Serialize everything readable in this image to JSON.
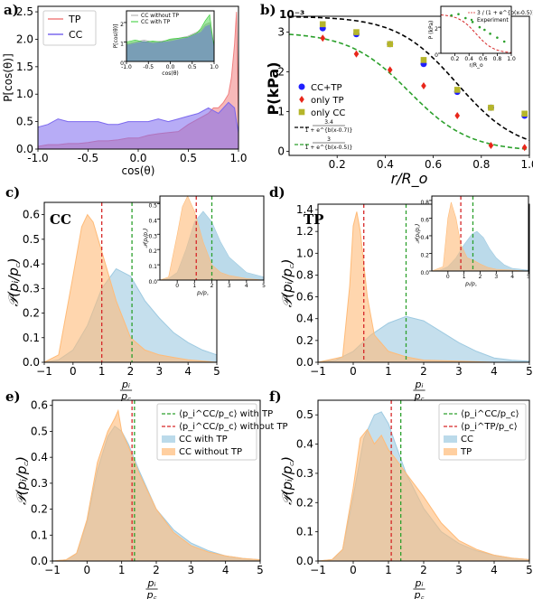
{
  "chart_data": [
    {
      "panel_label": "a)",
      "type": "area",
      "xlabel": "cos(θ)",
      "ylabel": "P[cos(θ)]",
      "xlim": [
        -1.0,
        1.0
      ],
      "ylim": [
        0,
        2.6
      ],
      "xticks": [
        "-1.0",
        "-0.5",
        "0.0",
        "0.5",
        "1.0"
      ],
      "yticks": [
        "0.0",
        "0.5",
        "1.0",
        "1.5",
        "2.0",
        "2.5"
      ],
      "legend_position": "top-left",
      "series": [
        {
          "name": "TP",
          "color": "#f08080",
          "x": [
            -1.0,
            -0.9,
            -0.8,
            -0.7,
            -0.6,
            -0.5,
            -0.4,
            -0.3,
            -0.2,
            -0.1,
            0.0,
            0.1,
            0.2,
            0.3,
            0.4,
            0.5,
            0.6,
            0.7,
            0.75,
            0.8,
            0.85,
            0.9,
            0.93,
            0.96,
            0.98,
            1.0
          ],
          "values": [
            0.05,
            0.08,
            0.08,
            0.1,
            0.1,
            0.12,
            0.15,
            0.15,
            0.17,
            0.2,
            0.2,
            0.25,
            0.28,
            0.3,
            0.32,
            0.45,
            0.55,
            0.65,
            0.75,
            0.75,
            0.85,
            1.0,
            1.3,
            1.9,
            2.5,
            0.5
          ]
        },
        {
          "name": "CC",
          "color": "#7b68ee",
          "x": [
            -1.0,
            -0.9,
            -0.8,
            -0.7,
            -0.6,
            -0.5,
            -0.4,
            -0.3,
            -0.2,
            -0.1,
            0.0,
            0.1,
            0.2,
            0.3,
            0.4,
            0.5,
            0.6,
            0.7,
            0.75,
            0.8,
            0.85,
            0.9,
            0.93,
            0.96,
            0.98,
            1.0
          ],
          "values": [
            0.4,
            0.45,
            0.55,
            0.5,
            0.5,
            0.5,
            0.5,
            0.45,
            0.45,
            0.5,
            0.5,
            0.5,
            0.55,
            0.5,
            0.55,
            0.6,
            0.65,
            0.75,
            0.7,
            0.65,
            0.75,
            0.85,
            0.8,
            0.75,
            0.5,
            0.3
          ]
        }
      ],
      "inset": {
        "ylabel": "P[cos(θ)]",
        "xlabel": "cos(θ)",
        "xticks": [
          "-1.0",
          "-0.5",
          "0.0",
          "0.5",
          "1.0"
        ],
        "yticks": [
          "0",
          "1",
          "2"
        ],
        "ylim": [
          0,
          2.6
        ],
        "series": [
          {
            "name": "CC without TP",
            "color": "#a9a9a9",
            "x": [
              -1.0,
              -0.8,
              -0.6,
              -0.4,
              -0.2,
              0.0,
              0.2,
              0.4,
              0.6,
              0.7,
              0.8,
              0.9,
              1.0
            ],
            "values": [
              0.9,
              1.0,
              1.1,
              1.0,
              1.05,
              1.1,
              1.2,
              1.3,
              1.5,
              1.6,
              1.9,
              2.0,
              0.8
            ]
          },
          {
            "name": "CC with TP",
            "color": "#32cd32",
            "x": [
              -1.0,
              -0.8,
              -0.6,
              -0.4,
              -0.2,
              0.0,
              0.2,
              0.4,
              0.6,
              0.7,
              0.8,
              0.9,
              1.0
            ],
            "values": [
              1.0,
              1.1,
              1.0,
              1.05,
              1.0,
              1.15,
              1.2,
              1.25,
              1.45,
              1.7,
              2.1,
              2.4,
              0.7
            ]
          }
        ]
      }
    },
    {
      "panel_label": "b)",
      "type": "scatter",
      "ylabel": "P(kPa)",
      "xlabel": "r/R_o",
      "y_multiplier": "10⁻³",
      "xlim": [
        0.0,
        1.0
      ],
      "ylim": [
        -0.1,
        3.4
      ],
      "xticks": [
        "0.2",
        "0.4",
        "0.6",
        "0.8",
        "1.0"
      ],
      "yticks": [
        "0",
        "1",
        "2",
        "3"
      ],
      "legend_position": "center-left",
      "series": [
        {
          "name": "CC+TP",
          "marker": "circle",
          "color": "#1f1fff",
          "x": [
            0.14,
            0.28,
            0.42,
            0.56,
            0.7,
            0.84,
            0.98
          ],
          "values": [
            3.1,
            2.95,
            2.7,
            2.2,
            1.5,
            1.1,
            0.9
          ]
        },
        {
          "name": "only TP",
          "marker": "diamond",
          "color": "#e8261a",
          "x": [
            0.14,
            0.28,
            0.42,
            0.56,
            0.7,
            0.84,
            0.98
          ],
          "values": [
            2.85,
            2.45,
            2.05,
            1.65,
            0.9,
            0.15,
            0.1
          ]
        },
        {
          "name": "only CC",
          "marker": "square",
          "color": "#b5b52a",
          "x": [
            0.14,
            0.28,
            0.42,
            0.56,
            0.7,
            0.84,
            0.98
          ],
          "values": [
            3.2,
            3.0,
            2.7,
            2.3,
            1.55,
            1.1,
            0.95
          ]
        }
      ],
      "fits": [
        {
          "label_num": "3.4",
          "label_den": "1 + e^{b(x-0.7)}",
          "color": "#000000",
          "style": "dashed",
          "A": 3.4,
          "b": 8,
          "x0": 0.7
        },
        {
          "label_num": "3",
          "label_den": "1 + e^{b(x-0.5)}",
          "color": "#2ca02c",
          "style": "dashed",
          "A": 3.0,
          "b": 8,
          "x0": 0.5
        }
      ],
      "inset": {
        "ylabel": "P (kPa)",
        "xlabel": "r/R_o",
        "xticks": [
          "0.2",
          "0.4",
          "0.6",
          "0.8",
          "1.0"
        ],
        "yticks": [
          "0",
          "2"
        ],
        "legend": [
          "3 / (1 + e^{b(x-0.5)})",
          "Experiment"
        ],
        "experiment_x": [
          0.15,
          0.25,
          0.35,
          0.45,
          0.55,
          0.62,
          0.7,
          0.8,
          0.9
        ],
        "experiment_y": [
          2.9,
          3.0,
          2.7,
          2.4,
          2.0,
          1.8,
          1.5,
          1.2,
          0.9
        ]
      }
    },
    {
      "panel_label": "c)",
      "panel_title": "CC",
      "type": "area",
      "xlabel": "p_i / p_c",
      "ylabel": "𝒫(p_i/p_c)",
      "xlim": [
        -1,
        5
      ],
      "ylim": [
        0,
        0.65
      ],
      "xticks": [
        "−1",
        "0",
        "1",
        "2",
        "3",
        "4",
        "5"
      ],
      "yticks": [
        "0.0",
        "0.1",
        "0.2",
        "0.3",
        "0.4",
        "0.5",
        "0.6"
      ],
      "series": [
        {
          "name": "orange",
          "color": "#ffbb78",
          "x": [
            -1,
            -0.5,
            0,
            0.3,
            0.5,
            0.7,
            1,
            1.5,
            2,
            2.5,
            3,
            3.5,
            4,
            4.5,
            5
          ],
          "values": [
            0.0,
            0.03,
            0.35,
            0.55,
            0.6,
            0.57,
            0.45,
            0.25,
            0.1,
            0.05,
            0.03,
            0.02,
            0.01,
            0.005,
            0.0
          ]
        },
        {
          "name": "blue",
          "color": "#9ecae1",
          "x": [
            -1,
            -0.5,
            0,
            0.5,
            1,
            1.5,
            2,
            2.5,
            3,
            3.5,
            4,
            4.5,
            5
          ],
          "values": [
            0.0,
            0.01,
            0.05,
            0.15,
            0.3,
            0.38,
            0.35,
            0.25,
            0.18,
            0.12,
            0.08,
            0.05,
            0.03
          ]
        }
      ],
      "mean_lines": [
        {
          "x": 1.0,
          "color": "#d62728"
        },
        {
          "x": 2.05,
          "color": "#2ca02c"
        }
      ],
      "inset": {
        "xticks": [
          "0",
          "1",
          "2",
          "3",
          "4",
          "5"
        ],
        "yticks": [
          "0.0",
          "0.1",
          "0.2",
          "0.3",
          "0.4",
          "0.5"
        ],
        "ylabel": "𝒫(p_i/p_c)",
        "xlabel": "p_i / p_c",
        "xlim": [
          -1,
          5
        ],
        "ylim": [
          0,
          0.55
        ],
        "orange_x": [
          -1,
          -0.5,
          0,
          0.3,
          0.6,
          1,
          1.5,
          2,
          2.5,
          3,
          4,
          5
        ],
        "orange_y": [
          0,
          0.02,
          0.3,
          0.48,
          0.55,
          0.45,
          0.25,
          0.1,
          0.05,
          0.03,
          0.01,
          0
        ],
        "blue_x": [
          -1,
          -0.5,
          0,
          0.5,
          1,
          1.5,
          2,
          2.5,
          3,
          3.5,
          4,
          5
        ],
        "blue_y": [
          0,
          0.01,
          0.05,
          0.2,
          0.38,
          0.45,
          0.38,
          0.25,
          0.15,
          0.1,
          0.05,
          0.02
        ],
        "mean_lines": [
          1.1,
          2.0
        ]
      }
    },
    {
      "panel_label": "d)",
      "panel_title": "TP",
      "type": "area",
      "xlabel": "p_i / p_c",
      "ylabel": "𝒫(p_i/p_c)",
      "xlim": [
        -1,
        5
      ],
      "ylim": [
        0,
        1.45
      ],
      "xticks": [
        "−1",
        "0",
        "1",
        "2",
        "3",
        "4",
        "5"
      ],
      "yticks": [
        "0.0",
        "0.2",
        "0.4",
        "0.6",
        "0.8",
        "1.0",
        "1.2",
        "1.4"
      ],
      "series": [
        {
          "name": "orange",
          "color": "#ffbb78",
          "x": [
            -1,
            -0.3,
            -0.1,
            0,
            0.1,
            0.2,
            0.4,
            0.6,
            1,
            1.5,
            2,
            3,
            4,
            5
          ],
          "values": [
            0,
            0.05,
            0.7,
            1.25,
            1.38,
            1.2,
            0.6,
            0.25,
            0.1,
            0.05,
            0.02,
            0.01,
            0,
            0
          ]
        },
        {
          "name": "blue",
          "color": "#9ecae1",
          "x": [
            -1,
            -0.5,
            0,
            0.5,
            1,
            1.5,
            2,
            2.5,
            3,
            3.5,
            4,
            4.5,
            5
          ],
          "values": [
            0,
            0.02,
            0.1,
            0.25,
            0.36,
            0.42,
            0.38,
            0.28,
            0.18,
            0.1,
            0.04,
            0.02,
            0.01
          ]
        }
      ],
      "mean_lines": [
        {
          "x": 0.3,
          "color": "#d62728"
        },
        {
          "x": 1.5,
          "color": "#2ca02c"
        }
      ],
      "inset": {
        "xticks": [
          "0",
          "1",
          "2",
          "3",
          "4",
          "5"
        ],
        "yticks": [
          "0.0",
          "0.2",
          "0.4",
          "0.6",
          "0.8"
        ],
        "ylabel": "𝒫(p_i/p_c)",
        "xlabel": "p_i / p_c",
        "xlim": [
          -1,
          5
        ],
        "ylim": [
          0,
          0.85
        ],
        "orange_x": [
          -1,
          -0.3,
          0,
          0.2,
          0.5,
          0.8,
          1.2,
          1.6,
          2,
          2.5,
          3,
          4,
          5
        ],
        "orange_y": [
          0,
          0.05,
          0.6,
          0.78,
          0.6,
          0.3,
          0.15,
          0.12,
          0.08,
          0.04,
          0.02,
          0.01,
          0
        ],
        "blue_x": [
          -1,
          -0.5,
          0,
          0.5,
          1,
          1.5,
          1.8,
          2.2,
          2.6,
          3,
          3.5,
          4,
          5
        ],
        "blue_y": [
          0,
          0.01,
          0.05,
          0.15,
          0.3,
          0.42,
          0.45,
          0.38,
          0.25,
          0.15,
          0.07,
          0.03,
          0.01
        ],
        "mean_lines": [
          0.8,
          1.55
        ]
      }
    },
    {
      "panel_label": "e)",
      "type": "area",
      "xlabel": "p_i / p_c",
      "ylabel": "𝒫(p_i/p_c)",
      "xlim": [
        -1,
        5
      ],
      "ylim": [
        0,
        0.62
      ],
      "xticks": [
        "−1",
        "0",
        "1",
        "2",
        "3",
        "4",
        "5"
      ],
      "yticks": [
        "0.0",
        "0.1",
        "0.2",
        "0.3",
        "0.4",
        "0.5",
        "0.6"
      ],
      "legend_position": "top-right",
      "legend": [
        "⟨p_i^CC/p_c⟩ with TP",
        "⟨p_i^CC/p_c⟩ without TP",
        "CC with TP",
        "CC without TP"
      ],
      "series": [
        {
          "name": "CC with TP",
          "color": "#9ecae1",
          "x": [
            -1,
            -0.6,
            -0.3,
            0,
            0.3,
            0.6,
            0.8,
            1,
            1.2,
            1.5,
            2,
            2.5,
            3,
            3.5,
            4,
            4.5,
            5
          ],
          "values": [
            0,
            0.005,
            0.03,
            0.15,
            0.35,
            0.48,
            0.52,
            0.5,
            0.45,
            0.35,
            0.2,
            0.12,
            0.07,
            0.04,
            0.02,
            0.01,
            0.005
          ]
        },
        {
          "name": "CC without TP",
          "color": "#ffbb78",
          "x": [
            -1,
            -0.6,
            -0.3,
            0,
            0.3,
            0.6,
            0.8,
            0.9,
            1,
            1.2,
            1.5,
            2,
            2.5,
            3,
            3.5,
            4,
            4.5,
            5
          ],
          "values": [
            0,
            0.005,
            0.03,
            0.16,
            0.38,
            0.5,
            0.55,
            0.58,
            0.5,
            0.44,
            0.34,
            0.2,
            0.11,
            0.06,
            0.035,
            0.02,
            0.01,
            0.005
          ]
        }
      ],
      "mean_lines": [
        {
          "x": 1.37,
          "color": "#2ca02c"
        },
        {
          "x": 1.3,
          "color": "#d62728"
        }
      ]
    },
    {
      "panel_label": "f)",
      "type": "area",
      "xlabel": "p_i / p_c",
      "ylabel": "𝒫(p_i/p_c)",
      "xlim": [
        -1,
        5
      ],
      "ylim": [
        0,
        0.55
      ],
      "xticks": [
        "−1",
        "0",
        "1",
        "2",
        "3",
        "4",
        "5"
      ],
      "yticks": [
        "0.0",
        "0.1",
        "0.2",
        "0.3",
        "0.4",
        "0.5"
      ],
      "legend_position": "top-right",
      "legend": [
        "⟨p_i^CC/p_c⟩",
        "⟨p_i^TP/p_c⟩",
        "CC",
        "TP"
      ],
      "series": [
        {
          "name": "CC",
          "color": "#9ecae1",
          "x": [
            -1,
            -0.6,
            -0.3,
            0,
            0.3,
            0.6,
            0.8,
            1,
            1.2,
            1.5,
            2,
            2.5,
            3,
            3.5,
            4,
            4.5,
            5
          ],
          "values": [
            0,
            0.005,
            0.04,
            0.22,
            0.42,
            0.5,
            0.51,
            0.47,
            0.4,
            0.3,
            0.18,
            0.1,
            0.06,
            0.035,
            0.02,
            0.01,
            0.005
          ]
        },
        {
          "name": "TP",
          "color": "#ffbb78",
          "x": [
            -1,
            -0.6,
            -0.3,
            0,
            0.2,
            0.4,
            0.6,
            0.8,
            1,
            1.2,
            1.5,
            2,
            2.5,
            3,
            3.5,
            4,
            4.5,
            5
          ],
          "values": [
            0,
            0.005,
            0.04,
            0.25,
            0.42,
            0.45,
            0.4,
            0.43,
            0.38,
            0.35,
            0.3,
            0.22,
            0.13,
            0.07,
            0.04,
            0.02,
            0.01,
            0.005
          ]
        }
      ],
      "mean_lines": [
        {
          "x": 1.35,
          "color": "#2ca02c"
        },
        {
          "x": 1.08,
          "color": "#d62728"
        }
      ]
    }
  ]
}
